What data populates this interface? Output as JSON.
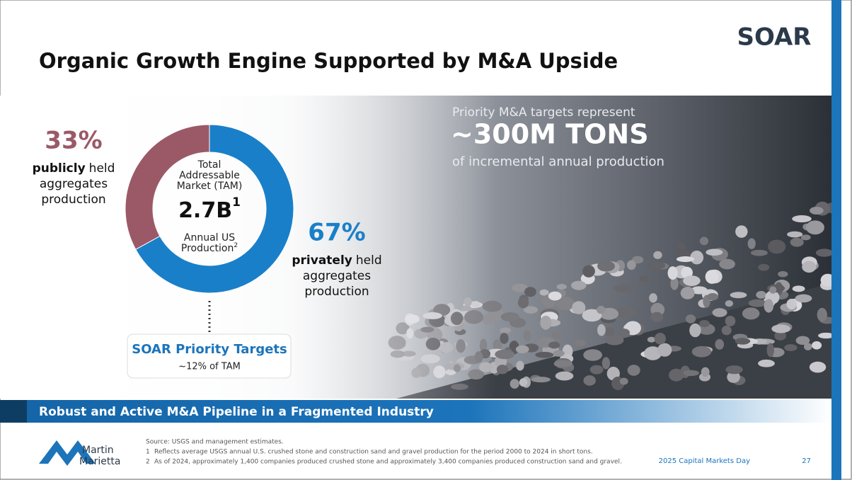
{
  "title": "Organic Growth Engine Supported by M&A Upside",
  "logo": "SOAR",
  "chart_data": {
    "type": "donut",
    "values": [
      67,
      33
    ],
    "value_labels": [
      "67%",
      "33%"
    ],
    "colors": [
      "#1a7fc9",
      "#9b5967"
    ],
    "label_emphasis": [
      "privately",
      "publicly"
    ],
    "label_rest": [
      [
        "held",
        "aggregates",
        "production"
      ],
      [
        "held",
        "aggregates",
        "production"
      ]
    ],
    "center": {
      "top": [
        "Total",
        "Addressable",
        "Market (TAM)"
      ],
      "value": "2.7B",
      "value_sup": "1",
      "bottom": [
        "Annual US",
        "Production"
      ],
      "bottom_sup": "2"
    }
  },
  "callout": {
    "title": "SOAR Priority Targets",
    "text": "~12% of TAM"
  },
  "highlight": {
    "intro": "Priority M&A targets represent",
    "value": "~300M TONS",
    "outro": "of incremental annual production"
  },
  "banner": "Robust and Active M&A Pipeline in a Fragmented Industry",
  "footnotes": {
    "source": "Source: USGS and management estimates.",
    "notes": [
      {
        "num": "1",
        "text": "Reflects average USGS annual U.S. crushed stone and construction sand and gravel production for the period 2000 to 2024 in short tons."
      },
      {
        "num": "2",
        "text": "As of 2024, approximately 1,400 companies produced crushed stone and approximately 3,400 companies produced construction sand and gravel."
      }
    ]
  },
  "footer": {
    "company": [
      "Martin",
      "Marietta"
    ],
    "event": "2025 Capital Markets Day",
    "page": "27"
  }
}
